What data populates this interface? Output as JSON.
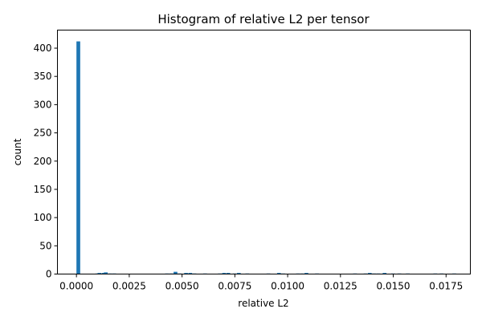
{
  "chart_data": {
    "type": "bar",
    "title": "Histogram of relative L2 per tensor",
    "xlabel": "relative L2",
    "ylabel": "count",
    "xlim": [
      -0.0009,
      0.01865
    ],
    "ylim": [
      0,
      432
    ],
    "x_ticks": [
      0.0,
      0.0025,
      0.005,
      0.0075,
      0.01,
      0.0125,
      0.015,
      0.0175
    ],
    "x_tick_labels": [
      "0.0000",
      "0.0025",
      "0.0050",
      "0.0075",
      "0.0100",
      "0.0125",
      "0.0150",
      "0.0175"
    ],
    "y_ticks": [
      0,
      50,
      100,
      150,
      200,
      250,
      300,
      350,
      400
    ],
    "y_tick_labels": [
      "0",
      "50",
      "100",
      "150",
      "200",
      "250",
      "300",
      "350",
      "400"
    ],
    "bar_color": "#1f77b4",
    "bin_width": 0.000178,
    "bins": [
      {
        "x": 0.0,
        "count": 412
      },
      {
        "x": 0.0009,
        "count": 1
      },
      {
        "x": 0.001,
        "count": 2
      },
      {
        "x": 0.0012,
        "count": 2
      },
      {
        "x": 0.0013,
        "count": 3
      },
      {
        "x": 0.0015,
        "count": 1
      },
      {
        "x": 0.0017,
        "count": 1
      },
      {
        "x": 0.0042,
        "count": 1
      },
      {
        "x": 0.0044,
        "count": 1
      },
      {
        "x": 0.0046,
        "count": 4
      },
      {
        "x": 0.0048,
        "count": 1
      },
      {
        "x": 0.0051,
        "count": 2
      },
      {
        "x": 0.0053,
        "count": 2
      },
      {
        "x": 0.0055,
        "count": 1
      },
      {
        "x": 0.006,
        "count": 1
      },
      {
        "x": 0.0067,
        "count": 1
      },
      {
        "x": 0.0069,
        "count": 2
      },
      {
        "x": 0.0071,
        "count": 2
      },
      {
        "x": 0.0074,
        "count": 1
      },
      {
        "x": 0.0076,
        "count": 2
      },
      {
        "x": 0.008,
        "count": 1
      },
      {
        "x": 0.009,
        "count": 1
      },
      {
        "x": 0.0095,
        "count": 2
      },
      {
        "x": 0.0097,
        "count": 1
      },
      {
        "x": 0.0104,
        "count": 1
      },
      {
        "x": 0.0106,
        "count": 1
      },
      {
        "x": 0.0108,
        "count": 2
      },
      {
        "x": 0.0113,
        "count": 1
      },
      {
        "x": 0.0131,
        "count": 1
      },
      {
        "x": 0.0136,
        "count": 1
      },
      {
        "x": 0.0138,
        "count": 2
      },
      {
        "x": 0.014,
        "count": 1
      },
      {
        "x": 0.0142,
        "count": 1
      },
      {
        "x": 0.0145,
        "count": 2
      },
      {
        "x": 0.0149,
        "count": 1
      },
      {
        "x": 0.0152,
        "count": 1
      },
      {
        "x": 0.0156,
        "count": 1
      },
      {
        "x": 0.0169,
        "count": 1
      },
      {
        "x": 0.0172,
        "count": 1
      },
      {
        "x": 0.0178,
        "count": 1
      }
    ]
  }
}
